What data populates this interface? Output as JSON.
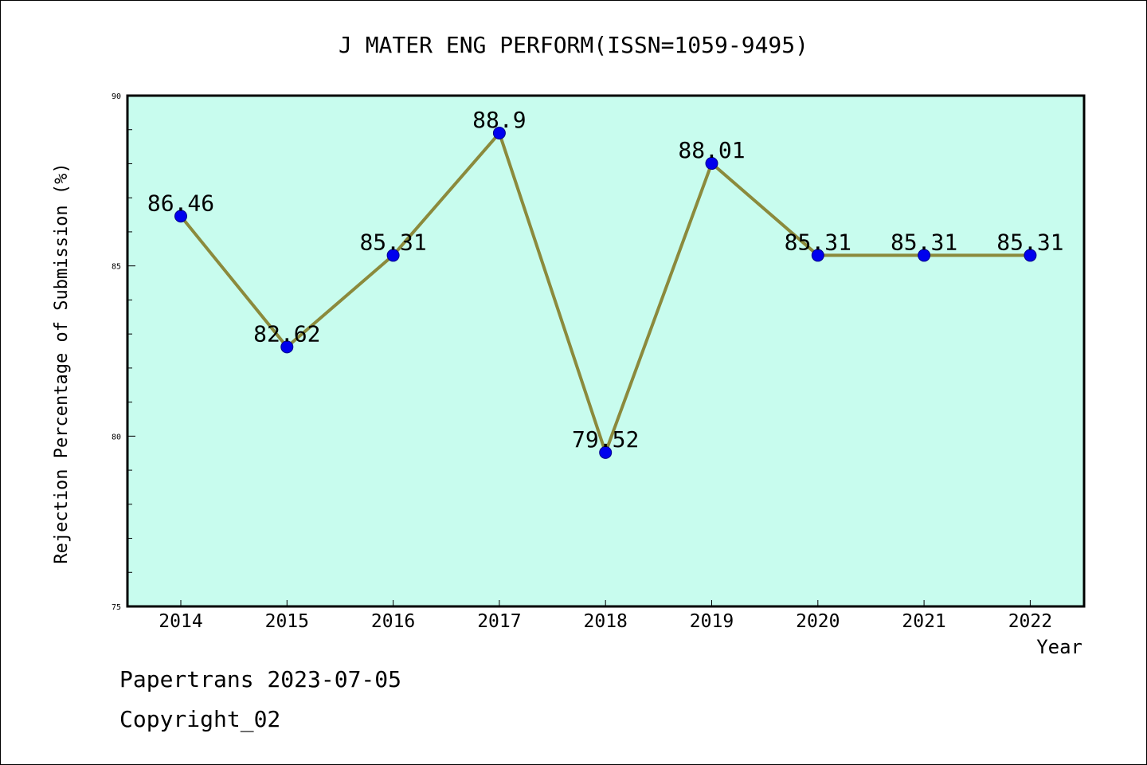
{
  "chart_data": {
    "type": "line",
    "title": "J MATER ENG PERFORM(ISSN=1059-9495)",
    "xlabel": "Year",
    "ylabel": "Rejection Percentage of Submission (%)",
    "categories": [
      "2014",
      "2015",
      "2016",
      "2017",
      "2018",
      "2019",
      "2020",
      "2021",
      "2022"
    ],
    "values": [
      86.46,
      82.62,
      85.31,
      88.9,
      79.52,
      88.01,
      85.31,
      85.31,
      85.31
    ],
    "data_labels": [
      "86.46",
      "82.62",
      "85.31",
      "88.9",
      "79.52",
      "88.01",
      "85.31",
      "85.31",
      "85.31"
    ],
    "ylim": [
      75,
      90
    ],
    "yticks": [
      "75",
      "80",
      "85",
      "90"
    ],
    "yminor_step": 1,
    "grid": false,
    "colors": {
      "plot_background": "#c8fcee",
      "line": "#8b8a3c",
      "marker": "#0000ee"
    }
  },
  "footer": {
    "line1": "Papertrans 2023-07-05",
    "line2": "Copyright_02"
  }
}
